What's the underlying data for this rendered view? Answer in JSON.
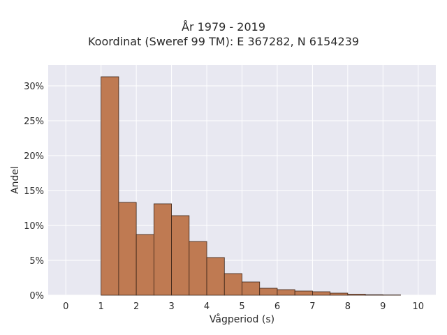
{
  "chart_data": {
    "type": "bar",
    "title_line1": "År 1979 - 2019",
    "title_line2": "Koordinat (Sweref 99 TM): E 367282, N 6154239",
    "xlabel": "Vågperiod (s)",
    "ylabel": "Andel",
    "xlim": [
      -0.5,
      10.5
    ],
    "ylim": [
      0,
      33
    ],
    "x_ticks": [
      0,
      1,
      2,
      3,
      4,
      5,
      6,
      7,
      8,
      9,
      10
    ],
    "x_tick_labels": [
      "0",
      "1",
      "2",
      "3",
      "4",
      "5",
      "6",
      "7",
      "8",
      "9",
      "10"
    ],
    "y_ticks": [
      0,
      5,
      10,
      15,
      20,
      25,
      30
    ],
    "y_tick_labels": [
      "0%",
      "5%",
      "10%",
      "15%",
      "20%",
      "25%",
      "30%"
    ],
    "bin_width": 0.5,
    "bins": [
      {
        "start": 1.0,
        "value": 31.3
      },
      {
        "start": 1.5,
        "value": 13.3
      },
      {
        "start": 2.0,
        "value": 8.7
      },
      {
        "start": 2.5,
        "value": 13.1
      },
      {
        "start": 3.0,
        "value": 11.4
      },
      {
        "start": 3.5,
        "value": 7.7
      },
      {
        "start": 4.0,
        "value": 5.4
      },
      {
        "start": 4.5,
        "value": 3.1
      },
      {
        "start": 5.0,
        "value": 1.9
      },
      {
        "start": 5.5,
        "value": 1.0
      },
      {
        "start": 6.0,
        "value": 0.8
      },
      {
        "start": 6.5,
        "value": 0.6
      },
      {
        "start": 7.0,
        "value": 0.5
      },
      {
        "start": 7.5,
        "value": 0.3
      },
      {
        "start": 8.0,
        "value": 0.15
      },
      {
        "start": 8.5,
        "value": 0.07
      },
      {
        "start": 9.0,
        "value": 0.04
      }
    ],
    "grid": true,
    "colors": {
      "bar_fill": "#bf7a52",
      "bar_stroke": "#3a2418",
      "plot_background": "#e8e8f1",
      "grid": "#ffffff"
    }
  }
}
